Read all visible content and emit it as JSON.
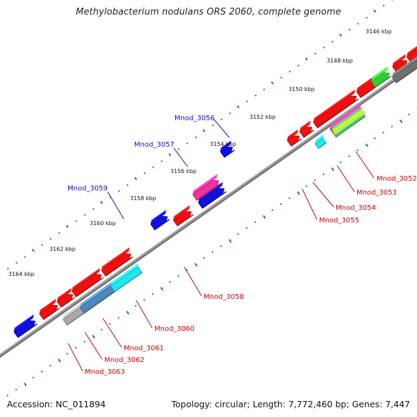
{
  "title": "Methylobacterium nodulans ORS 2060, complete genome",
  "footer": {
    "accession": "Accession: NC_011894",
    "summary": "Topology: circular; Length: 7,772,460 bp; Genes: 7,447"
  },
  "colors": {
    "backbone": "#808080",
    "tick": "#1a8a1a",
    "upper_label": "#1010c8",
    "lower_label": "#cc0000",
    "red": "#ee1111",
    "blue": "#1111dd",
    "magenta": "#ee3399",
    "cyan": "#22e6f0",
    "steel": "#4f86b8",
    "gray": "#a9a9a9",
    "dark_gray": "#707070",
    "green": "#33cc33"
  },
  "scale_labels": [
    "3146 kbp",
    "3148 kbp",
    "3150 kbp",
    "3152 kbp",
    "3154 kbp",
    "3156 kbp",
    "3158 kbp",
    "3160 kbp",
    "3162 kbp",
    "3164 kbp"
  ],
  "upper_gene_labels": [
    "Mnod_3056",
    "Mnod_3057",
    "Mnod_3059"
  ],
  "lower_gene_labels": [
    "Mnod_3052",
    "Mnod_3053",
    "Mnod_3054",
    "Mnod_3055",
    "Mnod_3058",
    "Mnod_3060",
    "Mnod_3061",
    "Mnod_3062",
    "Mnod_3063"
  ]
}
